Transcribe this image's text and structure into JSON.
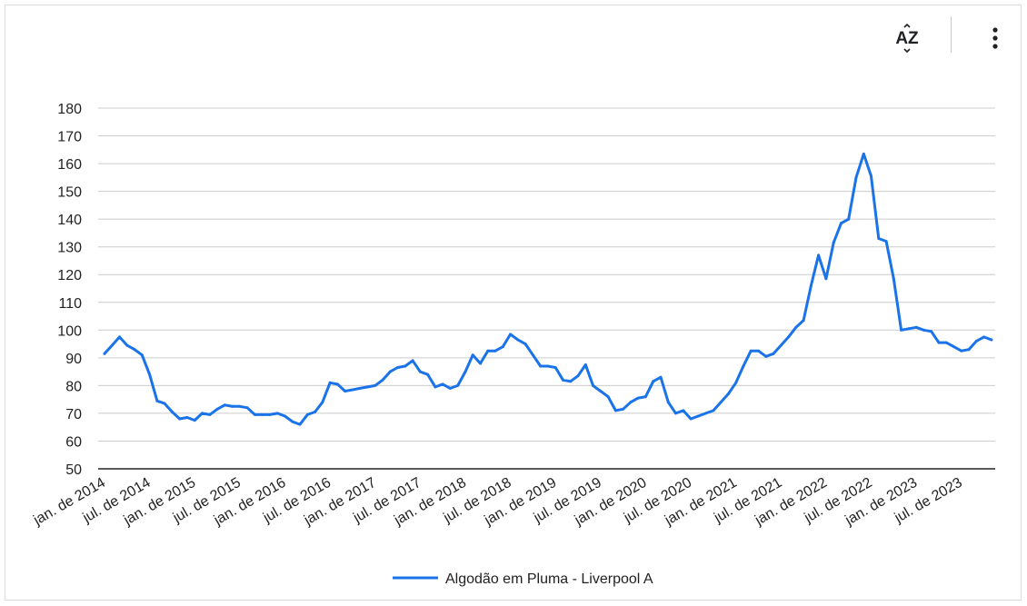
{
  "toolbar": {
    "sort_icon": "sort-az-icon",
    "sort_label": "AZ",
    "more_icon": "more-vertical-icon"
  },
  "chart_data": {
    "type": "line",
    "title": "",
    "xlabel": "",
    "ylabel": "",
    "ylim": [
      50,
      180
    ],
    "yticks": [
      50,
      60,
      70,
      80,
      90,
      100,
      110,
      120,
      130,
      140,
      150,
      160,
      170,
      180
    ],
    "xtick_labels": [
      "jan. de 2014",
      "jul. de 2014",
      "jan. de 2015",
      "jul. de 2015",
      "jan. de 2016",
      "jul. de 2016",
      "jan. de 2017",
      "jul. de 2017",
      "jan. de 2018",
      "jul. de 2018",
      "jan. de 2019",
      "jul. de 2019",
      "jan. de 2020",
      "jul. de 2020",
      "jan. de 2021",
      "jul. de 2021",
      "jan. de 2022",
      "jul. de 2022",
      "jan. de 2023",
      "jul. de 2023"
    ],
    "grid": true,
    "legend_position": "bottom",
    "color": "#1a73e8",
    "series": [
      {
        "name": "Algodão em Pluma - Liverpool A",
        "values": [
          91.5,
          94.5,
          97.5,
          94.5,
          93,
          91,
          84,
          74.5,
          73.5,
          70.5,
          68,
          68.5,
          67.5,
          70,
          69.5,
          71.5,
          73,
          72.5,
          72.5,
          72,
          69.5,
          69.5,
          69.5,
          70,
          69,
          67,
          66,
          69.5,
          70.5,
          74,
          81,
          80.5,
          78,
          78.5,
          79,
          79.5,
          80,
          82,
          85,
          86.5,
          87,
          89,
          85,
          84,
          79.5,
          80.5,
          79,
          80,
          85,
          91,
          88,
          92.5,
          92.5,
          94,
          98.5,
          96.5,
          95,
          91,
          87,
          87,
          86.5,
          82,
          81.5,
          83.5,
          87.5,
          80,
          78,
          76,
          71,
          71.5,
          74,
          75.5,
          76,
          81.5,
          83,
          74,
          70,
          71,
          68,
          69,
          70,
          71,
          74,
          77,
          81,
          87,
          92.5,
          92.5,
          90.5,
          91.5,
          94.5,
          97.5,
          101,
          103.5,
          116,
          127,
          118.5,
          131.5,
          138.5,
          140,
          155,
          163.5,
          155.5,
          133,
          132,
          118.5,
          100,
          100.5,
          101,
          100,
          99.5,
          95.5,
          95.5,
          94,
          92.5,
          93,
          96,
          97.5,
          96.5
        ]
      }
    ]
  }
}
